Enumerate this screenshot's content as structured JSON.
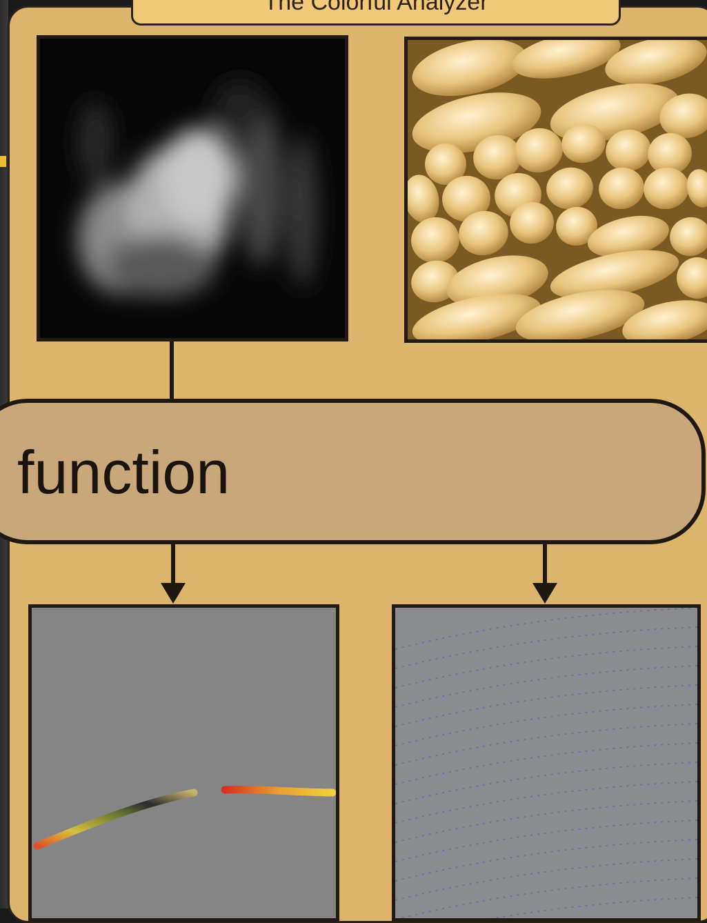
{
  "diagram": {
    "title": "The Colorful Analyzer",
    "center_node": {
      "label": "function"
    },
    "nodes": [
      {
        "id": "input-grayscale",
        "kind": "image",
        "description_icon": "grayscale-blurred-image-icon"
      },
      {
        "id": "input-cells",
        "kind": "image",
        "description_icon": "cell-texture-image-icon"
      },
      {
        "id": "output-fiber",
        "kind": "image",
        "description_icon": "colored-fiber-track-icon"
      },
      {
        "id": "output-field",
        "kind": "image",
        "description_icon": "dotted-field-lines-icon"
      }
    ],
    "colors": {
      "panel": "#dcb46c",
      "function_box": "#c8a87a",
      "border": "#1e1810",
      "output_background": "#858585"
    }
  }
}
